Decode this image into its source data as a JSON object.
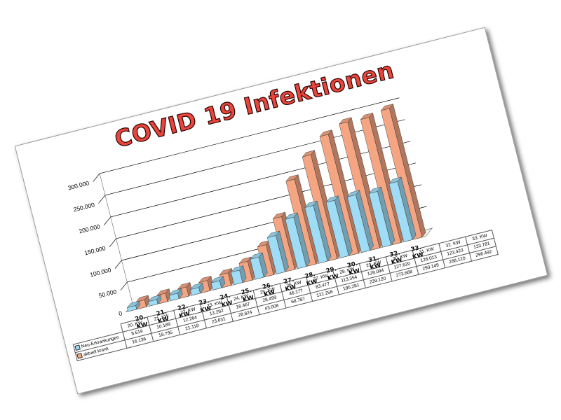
{
  "chart_data": {
    "type": "bar",
    "title": "COVID 19 Infektionen",
    "categories": [
      "20. KW",
      "21. KW",
      "22. KW",
      "23. KW",
      "24. KW",
      "25. KW",
      "26. KW",
      "27. KW",
      "28. KW",
      "29. KW",
      "30. KW",
      "31. KW",
      "32. KW",
      "33. KW"
    ],
    "series": [
      {
        "name": "Neu-Erkrankungen",
        "color": "#9fdcf5",
        "values": [
          8619,
          10189,
          12264,
          13292,
          16467,
          28499,
          46177,
          83477,
          113354,
          128094,
          127620,
          128013,
          123423,
          133781
        ],
        "value_labels": [
          "8.619",
          "10.189",
          "12.264",
          "13.292",
          "16.467",
          "28.499",
          "46.177",
          "83.477",
          "113.354",
          "128.094",
          "127.620",
          "128.013",
          "123.423",
          "133.781"
        ]
      },
      {
        "name": "aktuell krank",
        "color": "#f5a582",
        "values": [
          16136,
          18795,
          21118,
          23631,
          28824,
          43008,
          68787,
          121256,
          195281,
          239120,
          273688,
          290149,
          288120,
          296492
        ],
        "value_labels": [
          "16.136",
          "18.795",
          "21.118",
          "23.631",
          "28.824",
          "43.008",
          "68.787",
          "121.256",
          "195.281",
          "239.120",
          "273.688",
          "290.149",
          "288.120",
          "296.492"
        ]
      }
    ],
    "yticks": [
      0,
      50000,
      100000,
      150000,
      200000,
      250000,
      300000
    ],
    "ytick_labels": [
      "0",
      "50.000",
      "100.000",
      "150.000",
      "200.000",
      "250.000",
      "300.000"
    ],
    "ylim": [
      0,
      300000
    ],
    "grid": true,
    "legend": "data-table"
  }
}
